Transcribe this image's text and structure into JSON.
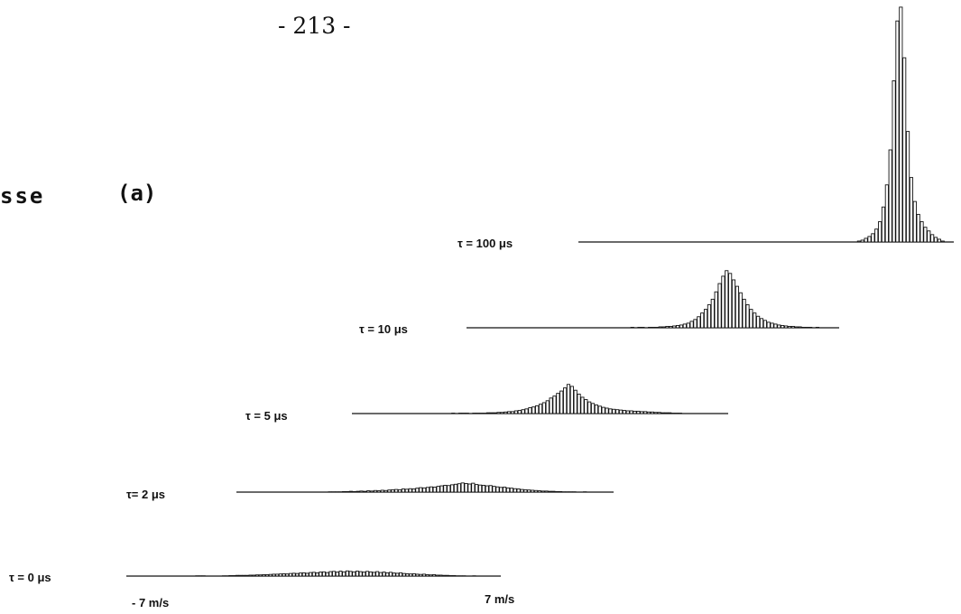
{
  "page": {
    "page_number": "- 213 -",
    "side_text": "sse",
    "panel_label": "(a)"
  },
  "chart_data": {
    "type": "bar",
    "title": "",
    "xlabel": "",
    "ylabel": "",
    "x_range": [
      -7,
      7
    ],
    "x_unit": "m/s",
    "xtick_labels": [
      "- 7 m/s",
      "7 m/s"
    ],
    "grid": false,
    "legend": "none",
    "series": [
      {
        "name": "τ = 0 μs",
        "values": [
          0,
          0,
          0,
          0,
          0,
          0,
          0,
          0,
          0,
          0,
          0,
          0,
          0,
          0,
          1,
          1,
          1,
          0,
          0,
          0,
          0,
          0,
          1,
          1,
          2,
          2,
          3,
          3,
          3,
          3,
          4,
          4,
          5,
          5,
          6,
          6,
          7,
          8,
          8,
          9,
          10,
          9,
          11,
          12,
          11,
          13,
          14,
          12,
          15,
          16,
          14,
          17,
          18,
          15,
          19,
          20,
          17,
          21,
          18,
          22,
          20,
          18,
          21,
          19,
          17,
          20,
          18,
          16,
          19,
          15,
          17,
          14,
          16,
          13,
          12,
          14,
          11,
          10,
          9,
          10,
          8,
          7,
          8,
          6,
          5,
          6,
          4,
          4,
          3,
          3,
          2,
          2,
          1,
          1,
          1,
          0,
          0,
          1,
          0,
          0
        ]
      },
      {
        "name": "τ= 2 μs",
        "values": [
          0,
          0,
          0,
          0,
          0,
          0,
          0,
          0,
          0,
          0,
          0,
          0,
          0,
          0,
          0,
          0,
          0,
          0,
          0,
          0,
          0,
          0,
          0,
          1,
          1,
          1,
          1,
          2,
          2,
          3,
          2,
          3,
          4,
          3,
          5,
          4,
          6,
          5,
          7,
          6,
          8,
          9,
          10,
          9,
          12,
          11,
          13,
          12,
          15,
          17,
          16,
          18,
          20,
          19,
          22,
          24,
          26,
          25,
          28,
          30,
          32,
          35,
          33,
          31,
          34,
          29,
          27,
          26,
          24,
          25,
          22,
          20,
          18,
          19,
          16,
          15,
          13,
          12,
          10,
          9,
          8,
          7,
          6,
          5,
          4,
          4,
          3,
          3,
          2,
          2,
          1,
          1,
          1,
          1,
          0,
          0,
          1,
          0,
          0,
          0
        ]
      },
      {
        "name": "τ = 5 μs",
        "values": [
          0,
          0,
          0,
          0,
          0,
          0,
          0,
          0,
          0,
          0,
          0,
          0,
          0,
          0,
          0,
          0,
          0,
          0,
          0,
          0,
          0,
          0,
          0,
          0,
          0,
          0,
          1,
          0,
          1,
          1,
          1,
          0,
          1,
          1,
          1,
          1,
          2,
          2,
          2,
          3,
          3,
          4,
          5,
          5,
          7,
          8,
          10,
          12,
          15,
          17,
          20,
          24,
          28,
          33,
          40,
          45,
          52,
          58,
          66,
          75,
          70,
          60,
          50,
          42,
          36,
          30,
          26,
          22,
          19,
          16,
          14,
          12,
          11,
          10,
          9,
          8,
          7,
          7,
          6,
          6,
          5,
          5,
          4,
          4,
          3,
          3,
          2,
          2,
          2,
          1,
          1,
          1,
          0,
          0,
          0,
          0,
          0,
          0,
          0,
          0
        ]
      },
      {
        "name": "τ = 10 μs",
        "values": [
          0,
          0,
          0,
          0,
          0,
          0,
          0,
          0,
          0,
          0,
          0,
          0,
          0,
          0,
          0,
          0,
          0,
          0,
          0,
          0,
          0,
          0,
          0,
          0,
          0,
          0,
          0,
          0,
          0,
          0,
          0,
          0,
          0,
          0,
          0,
          0,
          0,
          0,
          0,
          0,
          0,
          0,
          0,
          0,
          0,
          1,
          0,
          1,
          1,
          0,
          1,
          1,
          1,
          2,
          2,
          3,
          3,
          4,
          5,
          6,
          8,
          10,
          14,
          18,
          24,
          32,
          40,
          50,
          62,
          78,
          96,
          112,
          124,
          118,
          104,
          90,
          76,
          62,
          50,
          40,
          32,
          25,
          20,
          16,
          12,
          10,
          8,
          6,
          5,
          4,
          3,
          3,
          2,
          2,
          1,
          1,
          1,
          0,
          1,
          0
        ]
      },
      {
        "name": "τ = 100 μs",
        "values": [
          0,
          0,
          0,
          0,
          0,
          0,
          0,
          0,
          0,
          0,
          0,
          0,
          0,
          0,
          0,
          0,
          0,
          0,
          0,
          0,
          0,
          0,
          0,
          0,
          0,
          0,
          0,
          0,
          0,
          0,
          0,
          0,
          0,
          0,
          0,
          0,
          0,
          0,
          0,
          0,
          0,
          0,
          0,
          0,
          0,
          0,
          0,
          0,
          0,
          0,
          0,
          0,
          0,
          0,
          0,
          0,
          0,
          0,
          0,
          0,
          0,
          0,
          0,
          0,
          0,
          0,
          0,
          0,
          0,
          0,
          0,
          0,
          0,
          0,
          0,
          1,
          2,
          4,
          6,
          9,
          14,
          22,
          38,
          62,
          100,
          175,
          240,
          255,
          200,
          120,
          70,
          44,
          30,
          22,
          16,
          12,
          8,
          5,
          3,
          1
        ]
      }
    ]
  }
}
